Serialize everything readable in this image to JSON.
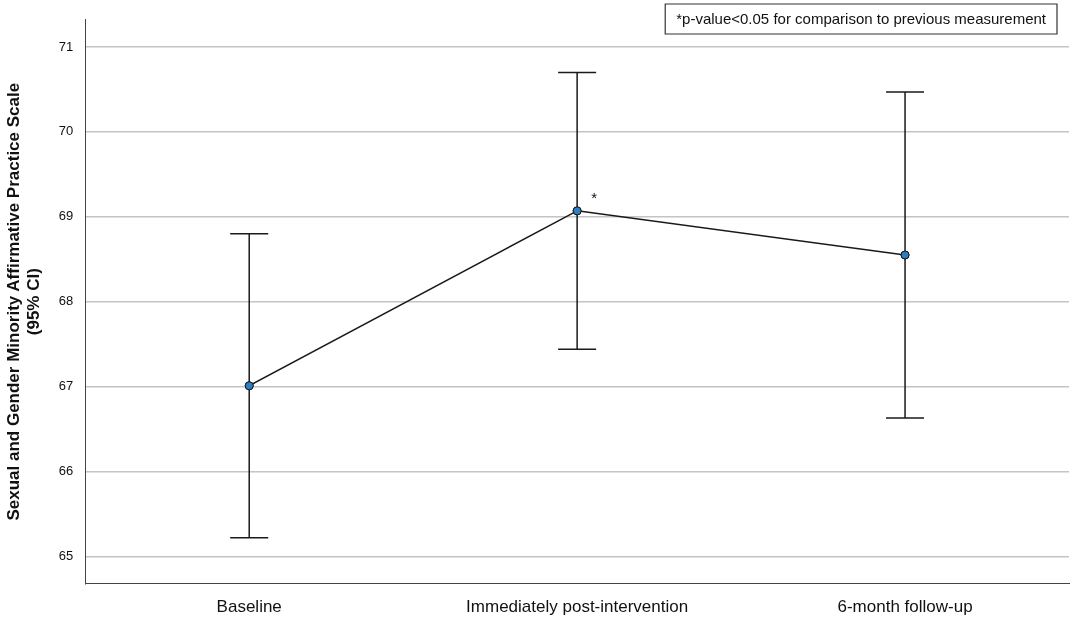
{
  "chart_data": {
    "type": "line",
    "ylabel": "Sexual and Gender Minority Affirmative Practice Scale\n(95% CI)",
    "categories": [
      "Baseline",
      "Immediately post-intervention",
      "6-month follow-up"
    ],
    "series": [
      {
        "color": "#2e7fc2",
        "values": [
          67.01,
          69.07,
          68.55
        ],
        "errors": [
          [
            65.22,
            68.8
          ],
          [
            67.44,
            70.7
          ],
          [
            66.63,
            70.47
          ]
        ]
      }
    ],
    "ylim": [
      64.68,
      71.32
    ],
    "yticks": [
      65,
      66,
      67,
      68,
      69,
      70,
      71
    ],
    "grid": "y",
    "legend": false,
    "marker": "circle",
    "line_style": "solid",
    "annotations": [
      "*p-value<0.05 for comparison to previous measurement",
      {
        "text": "*",
        "x": "Immediately post-intervention",
        "y": 69.07
      }
    ]
  }
}
